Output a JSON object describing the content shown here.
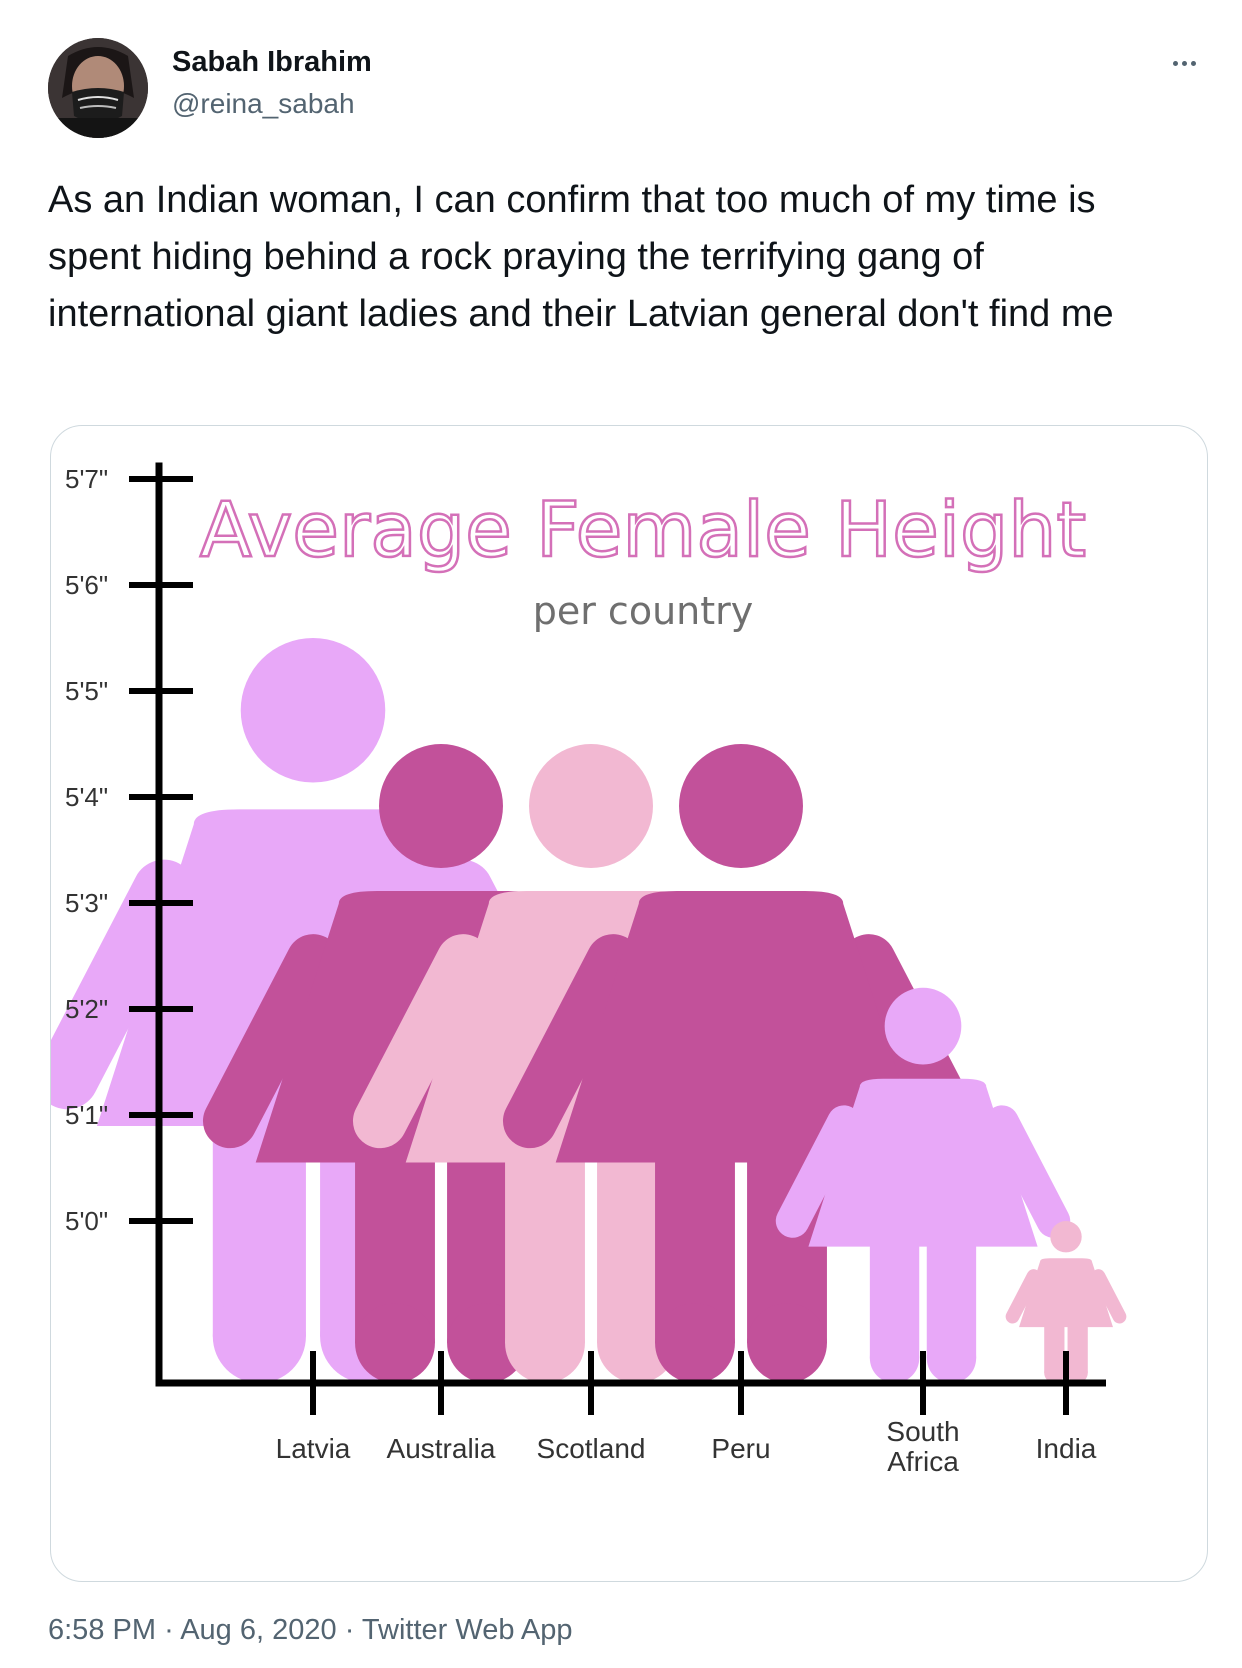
{
  "author": {
    "name": "Sabah Ibrahim",
    "handle": "@reina_sabah"
  },
  "tweet": {
    "text": "As an Indian woman, I can confirm that too much of my time is spent hiding behind a rock praying the terrifying gang of international giant ladies and their Latvian general don't find me"
  },
  "meta": {
    "time": "6:58 PM",
    "date": "Aug 6, 2020",
    "separator": "·",
    "source": "Twitter Web App"
  },
  "icons": {
    "more": "more-horizontal-icon"
  },
  "chart_data": {
    "type": "bar",
    "title": "Average Female Height",
    "subtitle": "per country",
    "y_ticks": [
      "5'7\"",
      "5'6\"",
      "5'5\"",
      "5'4\"",
      "5'3\"",
      "5'2\"",
      "5'1\"",
      "5'0\""
    ],
    "y_tick_inches": [
      67,
      66,
      65,
      64,
      63,
      62,
      61,
      60
    ],
    "categories": [
      "Latvia",
      "Australia",
      "Scotland",
      "Peru",
      "South Africa",
      "India"
    ],
    "values_inches": [
      65.5,
      64.5,
      64.5,
      64.5,
      62.2,
      60.0
    ],
    "bar_colors": [
      "#e8a8f8",
      "#c2519a",
      "#f2b8d2",
      "#c2519a",
      "#e8a8f8",
      "#f2b8d2"
    ],
    "title_color": "#d470b8",
    "axis_color": "#000000"
  }
}
